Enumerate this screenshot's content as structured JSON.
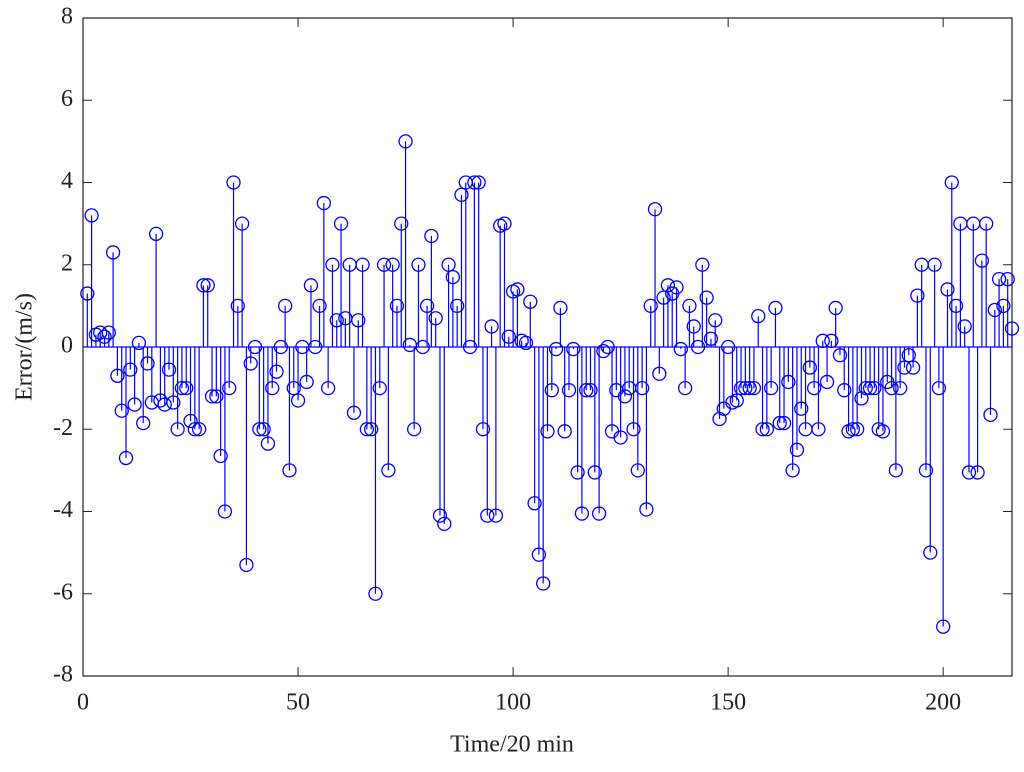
{
  "chart_data": {
    "type": "stem",
    "xlabel": "Time/20 min",
    "ylabel": "Error/(m/s)",
    "color": "#0000ff",
    "xlim": [
      0,
      216
    ],
    "ylim": [
      -8,
      8
    ],
    "xticks": [
      0,
      50,
      100,
      150,
      200
    ],
    "yticks": [
      -8,
      -6,
      -4,
      -2,
      0,
      2,
      4,
      6,
      8
    ],
    "x": [
      1,
      2,
      3,
      4,
      5,
      6,
      7,
      8,
      9,
      10,
      11,
      12,
      13,
      14,
      15,
      16,
      17,
      18,
      19,
      20,
      21,
      22,
      23,
      24,
      25,
      26,
      27,
      28,
      29,
      30,
      31,
      32,
      33,
      34,
      35,
      36,
      37,
      38,
      39,
      40,
      41,
      42,
      43,
      44,
      45,
      46,
      47,
      48,
      49,
      50,
      51,
      52,
      53,
      54,
      55,
      56,
      57,
      58,
      59,
      60,
      61,
      62,
      63,
      64,
      65,
      66,
      67,
      68,
      69,
      70,
      71,
      72,
      73,
      74,
      75,
      76,
      77,
      78,
      79,
      80,
      81,
      82,
      83,
      84,
      85,
      86,
      87,
      88,
      89,
      90,
      91,
      92,
      93,
      94,
      95,
      96,
      97,
      98,
      99,
      100,
      101,
      102,
      103,
      104,
      105,
      106,
      107,
      108,
      109,
      110,
      111,
      112,
      113,
      114,
      115,
      116,
      117,
      118,
      119,
      120,
      121,
      122,
      123,
      124,
      125,
      126,
      127,
      128,
      129,
      130,
      131,
      132,
      133,
      134,
      135,
      136,
      137,
      138,
      139,
      140,
      141,
      142,
      143,
      144,
      145,
      146,
      147,
      148,
      149,
      150,
      151,
      152,
      153,
      154,
      155,
      156,
      157,
      158,
      159,
      160,
      161,
      162,
      163,
      164,
      165,
      166,
      167,
      168,
      169,
      170,
      171,
      172,
      173,
      174,
      175,
      176,
      177,
      178,
      179,
      180,
      181,
      182,
      183,
      184,
      185,
      186,
      187,
      188,
      189,
      190,
      191,
      192,
      193,
      194,
      195,
      196,
      197,
      198,
      199,
      200,
      201,
      202,
      203,
      204,
      205,
      206,
      207,
      208,
      209,
      210,
      211,
      212,
      213,
      214,
      215,
      216
    ],
    "values": [
      1.3,
      3.2,
      0.3,
      0.35,
      0.25,
      0.35,
      2.3,
      -0.7,
      -1.55,
      -2.7,
      -0.55,
      -1.4,
      0.1,
      -1.85,
      -0.4,
      -1.35,
      2.75,
      -1.3,
      -1.4,
      -0.55,
      -1.35,
      -2.0,
      -1.0,
      -1.0,
      -1.8,
      -2.0,
      -2.0,
      1.5,
      1.5,
      -1.2,
      -1.2,
      -2.65,
      -4.0,
      -1.0,
      4.0,
      1.0,
      3.0,
      -5.3,
      -0.4,
      0.0,
      -2.0,
      -2.0,
      -2.35,
      -1.0,
      -0.6,
      0.0,
      1.0,
      -3.0,
      -1.0,
      -1.3,
      0.0,
      -0.85,
      1.5,
      0.0,
      1.0,
      3.5,
      -1.0,
      2.0,
      0.65,
      3.0,
      0.7,
      2.0,
      -1.6,
      0.65,
      2.0,
      -2.0,
      -2.0,
      -6.0,
      -1.0,
      2.0,
      -3.0,
      2.0,
      1.0,
      3.0,
      5.0,
      0.05,
      -2.0,
      2.0,
      0.0,
      1.0,
      2.7,
      0.7,
      -4.1,
      -4.3,
      2.0,
      1.7,
      1.0,
      3.7,
      4.0,
      0.0,
      4.0,
      4.0,
      -2.0,
      -4.1,
      0.5,
      -4.1,
      2.95,
      3.0,
      0.25,
      1.35,
      1.4,
      0.15,
      0.1,
      1.1,
      -3.8,
      -5.05,
      -5.75,
      -2.05,
      -1.05,
      -0.05,
      0.95,
      -2.05,
      -1.05,
      -0.05,
      -3.05,
      -4.05,
      -1.05,
      -1.05,
      -3.05,
      -4.05,
      -0.1,
      0.0,
      -2.05,
      -1.05,
      -2.2,
      -1.2,
      -1.0,
      -2.0,
      -3.0,
      -1.0,
      -3.95,
      1.0,
      3.35,
      -0.65,
      1.2,
      1.5,
      1.3,
      1.45,
      -0.05,
      -1.0,
      1.0,
      0.5,
      0.0,
      2.0,
      1.2,
      0.2,
      0.65,
      -1.75,
      -1.5,
      0.0,
      -1.35,
      -1.3,
      -1.0,
      -1.0,
      -1.0,
      -1.0,
      0.75,
      -2.0,
      -2.0,
      -1.0,
      0.95,
      -1.85,
      -1.85,
      -0.85,
      -3.0,
      -2.5,
      -1.5,
      -2.0,
      -0.5,
      -1.0,
      -2.0,
      0.15,
      -0.85,
      0.15,
      0.95,
      -0.2,
      -1.05,
      -2.05,
      -2.0,
      -2.0,
      -1.25,
      -1.0,
      -1.0,
      -1.0,
      -2.0,
      -2.05,
      -0.85,
      -1.0,
      -3.0,
      -1.0,
      -0.5,
      -0.2,
      -0.5,
      1.25,
      2.0,
      -3.0,
      -5.0,
      2.0,
      -1.0,
      -6.8,
      1.4,
      4.0,
      1.0,
      3.0,
      0.5,
      -3.05,
      3.0,
      -3.05,
      2.1,
      3.0,
      -1.65,
      0.9,
      1.65,
      1.0,
      1.65,
      0.45
    ]
  }
}
